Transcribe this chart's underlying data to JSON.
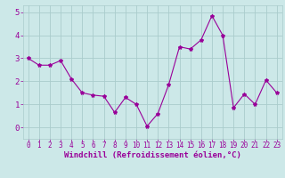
{
  "x": [
    0,
    1,
    2,
    3,
    4,
    5,
    6,
    7,
    8,
    9,
    10,
    11,
    12,
    13,
    14,
    15,
    16,
    17,
    18,
    19,
    20,
    21,
    22,
    23
  ],
  "y": [
    3.0,
    2.7,
    2.7,
    2.9,
    2.1,
    1.5,
    1.4,
    1.35,
    0.65,
    1.3,
    1.0,
    0.05,
    0.6,
    1.85,
    3.5,
    3.4,
    3.8,
    4.85,
    4.0,
    0.85,
    1.45,
    1.0,
    2.05,
    1.5
  ],
  "line_color": "#990099",
  "marker": "*",
  "marker_size": 3,
  "bg_color": "#cce8e8",
  "grid_color": "#aacccc",
  "xlabel": "Windchill (Refroidissement éolien,°C)",
  "xlim": [
    -0.5,
    23.5
  ],
  "ylim": [
    -0.5,
    5.3
  ],
  "yticks": [
    0,
    1,
    2,
    3,
    4,
    5
  ],
  "xticks": [
    0,
    1,
    2,
    3,
    4,
    5,
    6,
    7,
    8,
    9,
    10,
    11,
    12,
    13,
    14,
    15,
    16,
    17,
    18,
    19,
    20,
    21,
    22,
    23
  ],
  "tick_color": "#990099",
  "label_color": "#990099",
  "xlabel_fontsize": 6.5,
  "xtick_fontsize": 5.5,
  "ytick_fontsize": 6.5
}
